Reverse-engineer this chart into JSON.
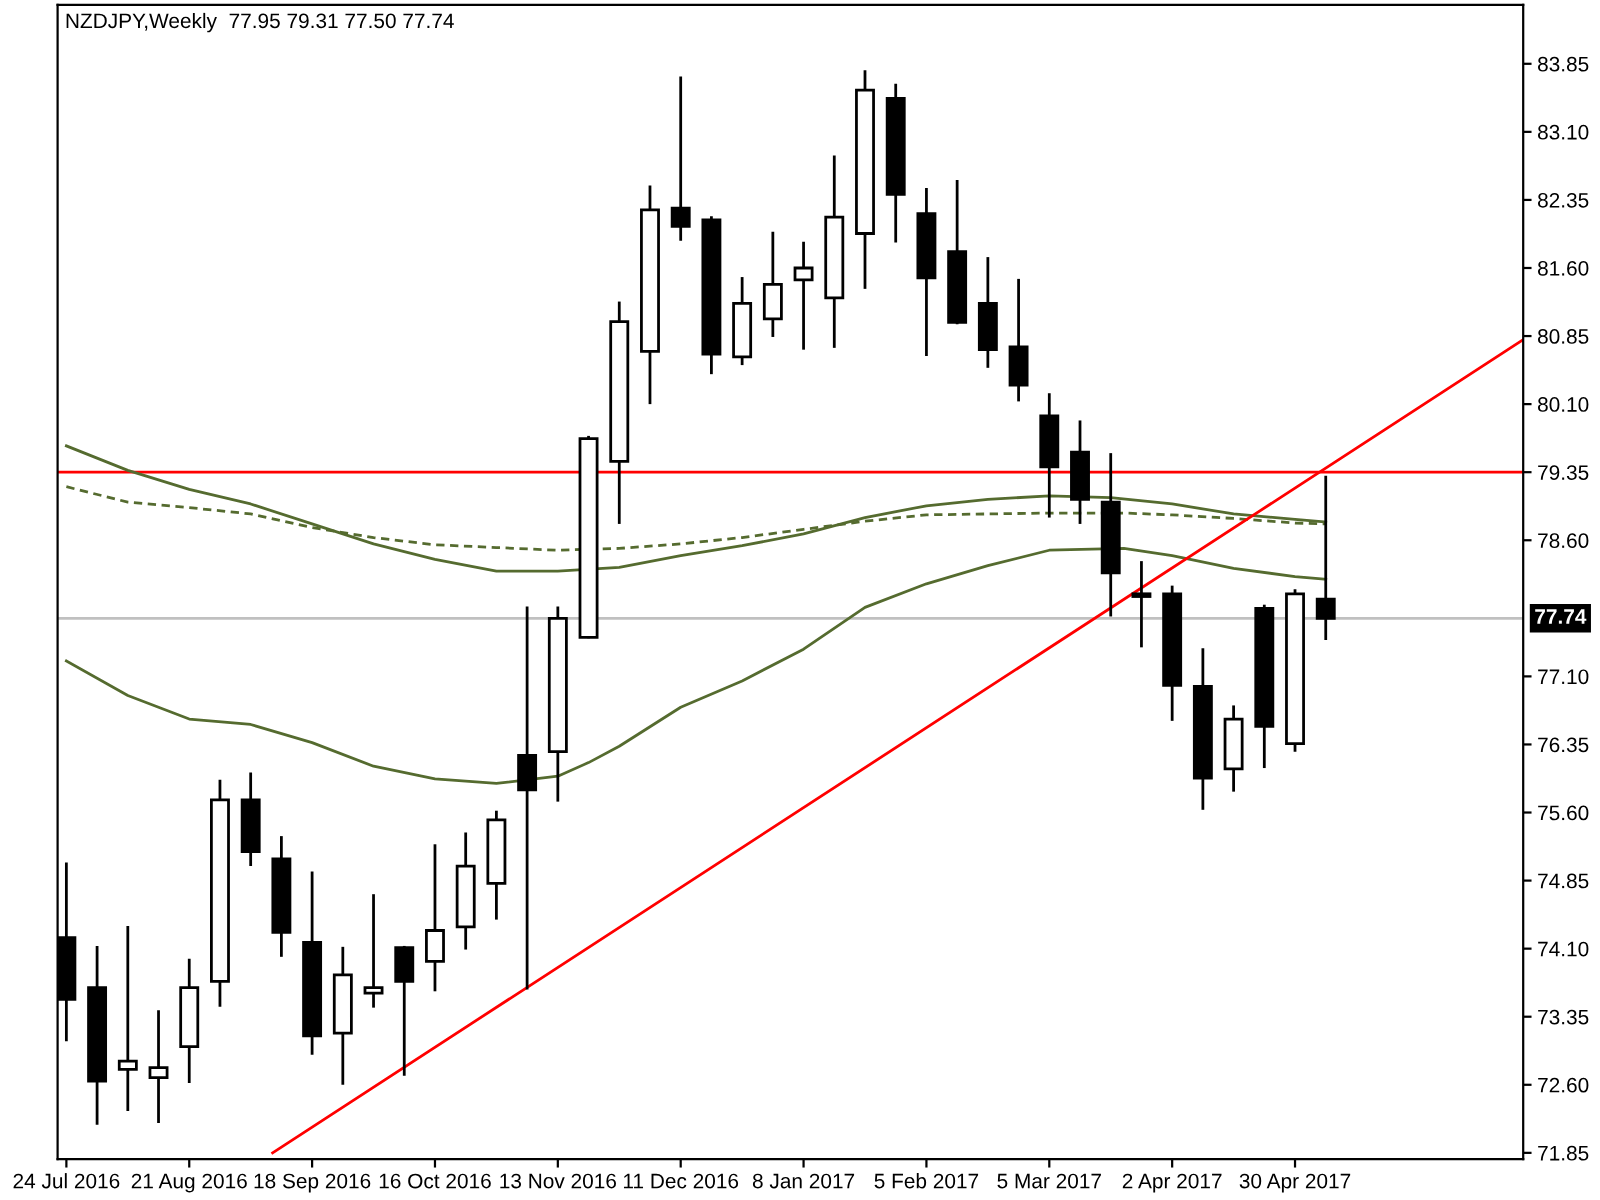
{
  "chart_data": {
    "type": "candlestick",
    "title": "NZDJPY,Weekly  77.95 79.31 77.50 77.74",
    "xlim": [
      "2016-07-22",
      "2017-06-21"
    ],
    "xticks": [
      {
        "value": "2016-07-24",
        "label": "24 Jul 2016"
      },
      {
        "value": "2016-08-21",
        "label": "21 Aug 2016"
      },
      {
        "value": "2016-09-18",
        "label": "18 Sep 2016"
      },
      {
        "value": "2016-10-16",
        "label": "16 Oct 2016"
      },
      {
        "value": "2016-11-13",
        "label": "13 Nov 2016"
      },
      {
        "value": "2016-12-11",
        "label": "11 Dec 2016"
      },
      {
        "value": "2017-01-08",
        "label": "8 Jan 2017"
      },
      {
        "value": "2017-02-05",
        "label": "5 Feb 2017"
      },
      {
        "value": "2017-03-05",
        "label": "5 Mar 2017"
      },
      {
        "value": "2017-04-02",
        "label": "2 Apr 2017"
      },
      {
        "value": "2017-04-30",
        "label": "30 Apr 2017"
      }
    ],
    "ylim": [
      71.78,
      84.5
    ],
    "yticks": [
      {
        "value": 71.85,
        "label": "71.85"
      },
      {
        "value": 72.6,
        "label": "72.60"
      },
      {
        "value": 73.35,
        "label": "73.35"
      },
      {
        "value": 74.1,
        "label": "74.10"
      },
      {
        "value": 74.85,
        "label": "74.85"
      },
      {
        "value": 75.6,
        "label": "75.60"
      },
      {
        "value": 76.35,
        "label": "76.35"
      },
      {
        "value": 77.1,
        "label": "77.10"
      },
      {
        "value": 78.6,
        "label": "78.60"
      },
      {
        "value": 79.35,
        "label": "79.35"
      },
      {
        "value": 80.1,
        "label": "80.10"
      },
      {
        "value": 80.85,
        "label": "80.85"
      },
      {
        "value": 81.6,
        "label": "81.60"
      },
      {
        "value": 82.35,
        "label": "82.35"
      },
      {
        "value": 83.1,
        "label": "83.10"
      },
      {
        "value": 83.85,
        "label": "83.85"
      }
    ],
    "grid": false,
    "legend": false,
    "ref_lines": [
      {
        "axis": "y",
        "value": 79.35,
        "color": "#ff0000"
      },
      {
        "axis": "y",
        "value": 77.74,
        "label": "77.74",
        "color": "#c0c0c0"
      }
    ],
    "series": [
      {
        "type": "line",
        "color": "#556b2f",
        "line_style": "solid",
        "x": [
          "2016-07-24",
          "2016-08-07",
          "2016-08-21",
          "2016-09-04",
          "2016-09-18",
          "2016-10-02",
          "2016-10-16",
          "2016-10-30",
          "2016-11-13",
          "2016-11-27",
          "2016-12-11",
          "2016-12-25",
          "2017-01-08",
          "2017-01-22",
          "2017-02-05",
          "2017-02-19",
          "2017-03-05",
          "2017-03-19",
          "2017-04-02",
          "2017-04-16",
          "2017-04-30",
          "2017-05-07"
        ],
        "values": [
          79.64,
          79.37,
          79.16,
          79.0,
          78.78,
          78.56,
          78.39,
          78.26,
          78.26,
          78.3,
          78.43,
          78.54,
          78.67,
          78.85,
          78.98,
          79.05,
          79.09,
          79.07,
          79.0,
          78.89,
          78.83,
          78.8
        ]
      },
      {
        "type": "line",
        "color": "#556b2f",
        "line_style": "dashed",
        "x": [
          "2016-07-24",
          "2016-08-07",
          "2016-08-21",
          "2016-09-04",
          "2016-09-18",
          "2016-10-02",
          "2016-10-16",
          "2016-10-30",
          "2016-11-13",
          "2016-11-27",
          "2016-12-11",
          "2016-12-25",
          "2017-01-08",
          "2017-01-22",
          "2017-02-05",
          "2017-02-19",
          "2017-03-05",
          "2017-03-22",
          "2017-04-02",
          "2017-04-16",
          "2017-04-30",
          "2017-05-07"
        ],
        "values": [
          79.19,
          79.02,
          78.96,
          78.89,
          78.74,
          78.63,
          78.55,
          78.52,
          78.49,
          78.51,
          78.56,
          78.63,
          78.72,
          78.81,
          78.88,
          78.89,
          78.9,
          78.9,
          78.88,
          78.84,
          78.79,
          78.78
        ]
      },
      {
        "type": "line",
        "color": "#556b2f",
        "line_style": "solid",
        "x": [
          "2016-07-24",
          "2016-08-07",
          "2016-08-21",
          "2016-09-04",
          "2016-09-18",
          "2016-10-02",
          "2016-10-16",
          "2016-10-30",
          "2016-11-13",
          "2016-11-20",
          "2016-11-27",
          "2016-12-11",
          "2016-12-25",
          "2017-01-08",
          "2017-01-22",
          "2017-02-05",
          "2017-02-19",
          "2017-03-05",
          "2017-03-22",
          "2017-04-02",
          "2017-04-16",
          "2017-04-30",
          "2017-05-07"
        ],
        "values": [
          77.27,
          76.89,
          76.63,
          76.57,
          76.37,
          76.11,
          75.97,
          75.92,
          76.0,
          76.15,
          76.33,
          76.76,
          77.05,
          77.4,
          77.86,
          78.12,
          78.32,
          78.49,
          78.51,
          78.43,
          78.29,
          78.2,
          78.17
        ]
      },
      {
        "type": "line",
        "color": "#ff0000",
        "line_style": "solid",
        "x": [
          "2016-09-09",
          "2017-06-21"
        ],
        "values": [
          71.85,
          80.81
        ]
      },
      {
        "type": "candlestick",
        "color": "#000000",
        "x": [
          "2016-07-24",
          "2016-07-31",
          "2016-08-07",
          "2016-08-14",
          "2016-08-21",
          "2016-08-28",
          "2016-09-04",
          "2016-09-11",
          "2016-09-18",
          "2016-09-25",
          "2016-10-02",
          "2016-10-09",
          "2016-10-16",
          "2016-10-23",
          "2016-10-30",
          "2016-11-06",
          "2016-11-13",
          "2016-11-20",
          "2016-11-27",
          "2016-12-04",
          "2016-12-11",
          "2016-12-18",
          "2016-12-25",
          "2017-01-01",
          "2017-01-08",
          "2017-01-15",
          "2017-01-22",
          "2017-01-29",
          "2017-02-05",
          "2017-02-12",
          "2017-02-19",
          "2017-02-26",
          "2017-03-05",
          "2017-03-12",
          "2017-03-19",
          "2017-03-26",
          "2017-04-02",
          "2017-04-09",
          "2017-04-16",
          "2017-04-23",
          "2017-04-30",
          "2017-05-07"
        ],
        "ohlc": [
          [
            74.22,
            75.05,
            73.08,
            73.54
          ],
          [
            73.67,
            74.13,
            72.16,
            72.64
          ],
          [
            72.77,
            74.35,
            72.31,
            72.86
          ],
          [
            72.68,
            73.42,
            72.18,
            72.79
          ],
          [
            73.02,
            73.99,
            72.62,
            73.67
          ],
          [
            73.74,
            75.96,
            73.46,
            75.74
          ],
          [
            75.74,
            76.04,
            75.01,
            75.17
          ],
          [
            75.09,
            75.34,
            74.01,
            74.28
          ],
          [
            74.17,
            74.95,
            72.93,
            73.14
          ],
          [
            73.17,
            74.12,
            72.6,
            73.81
          ],
          [
            73.61,
            74.7,
            73.45,
            73.67
          ],
          [
            74.11,
            74.13,
            72.7,
            73.74
          ],
          [
            73.96,
            75.25,
            73.63,
            74.3
          ],
          [
            74.34,
            75.38,
            74.09,
            75.01
          ],
          [
            74.82,
            75.62,
            74.42,
            75.52
          ],
          [
            76.23,
            77.87,
            73.65,
            75.85
          ],
          [
            76.27,
            77.87,
            75.72,
            77.74
          ],
          [
            77.53,
            79.75,
            77.52,
            79.72
          ],
          [
            79.47,
            81.23,
            78.78,
            81.01
          ],
          [
            80.68,
            82.51,
            80.1,
            82.24
          ],
          [
            82.26,
            83.71,
            81.9,
            82.06
          ],
          [
            82.13,
            82.17,
            80.43,
            80.65
          ],
          [
            80.62,
            81.5,
            80.53,
            81.21
          ],
          [
            81.04,
            82.0,
            80.84,
            81.42
          ],
          [
            81.47,
            81.89,
            80.7,
            81.6
          ],
          [
            81.27,
            82.84,
            80.72,
            82.16
          ],
          [
            81.98,
            83.78,
            81.37,
            83.56
          ],
          [
            83.47,
            83.63,
            81.88,
            82.41
          ],
          [
            82.2,
            82.48,
            80.63,
            81.49
          ],
          [
            81.78,
            82.57,
            80.98,
            81.0
          ],
          [
            81.21,
            81.72,
            80.5,
            80.7
          ],
          [
            80.73,
            81.48,
            80.13,
            80.31
          ],
          [
            79.97,
            80.22,
            78.85,
            79.41
          ],
          [
            79.57,
            79.92,
            78.78,
            79.05
          ],
          [
            79.02,
            79.56,
            77.76,
            78.24
          ],
          [
            78.01,
            78.37,
            77.42,
            77.98
          ],
          [
            78.01,
            78.1,
            76.61,
            77.0
          ],
          [
            76.99,
            77.41,
            75.63,
            75.98
          ],
          [
            76.08,
            76.78,
            75.83,
            76.63
          ],
          [
            77.85,
            77.89,
            76.09,
            76.55
          ],
          [
            76.36,
            78.06,
            76.27,
            78.01
          ],
          [
            77.95,
            79.31,
            77.5,
            77.74
          ]
        ]
      }
    ]
  }
}
